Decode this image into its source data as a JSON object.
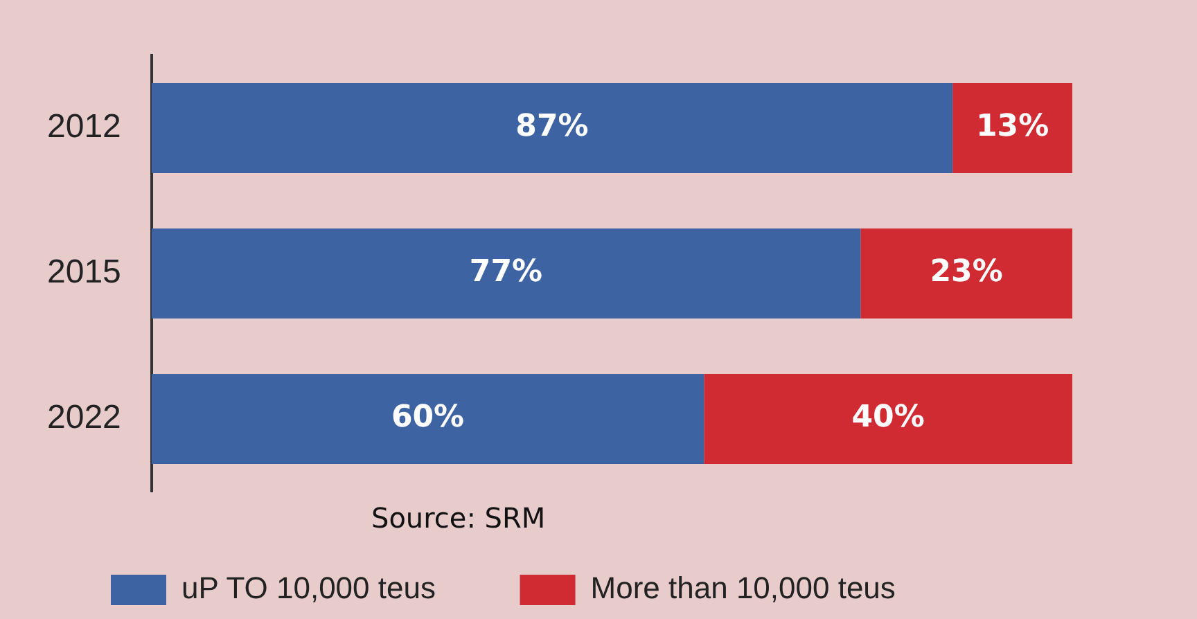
{
  "chart_data": {
    "type": "bar",
    "orientation": "horizontal",
    "stacked": true,
    "categories": [
      "2012",
      "2015",
      "2022"
    ],
    "series": [
      {
        "name": "uP TO 10,000 teus",
        "color": "#3d63a3",
        "values": [
          87,
          77,
          60
        ],
        "value_labels": [
          "87%",
          "77%",
          "60%"
        ]
      },
      {
        "name": "More than 10,000 teus",
        "color": "#d02a33",
        "values": [
          13,
          23,
          40
        ],
        "value_labels": [
          "13%",
          "23%",
          "40%"
        ]
      }
    ],
    "legend": "bottom",
    "grid": false,
    "tick_labels": "y",
    "annotations": [
      {
        "text": "Source: SRM"
      }
    ]
  }
}
